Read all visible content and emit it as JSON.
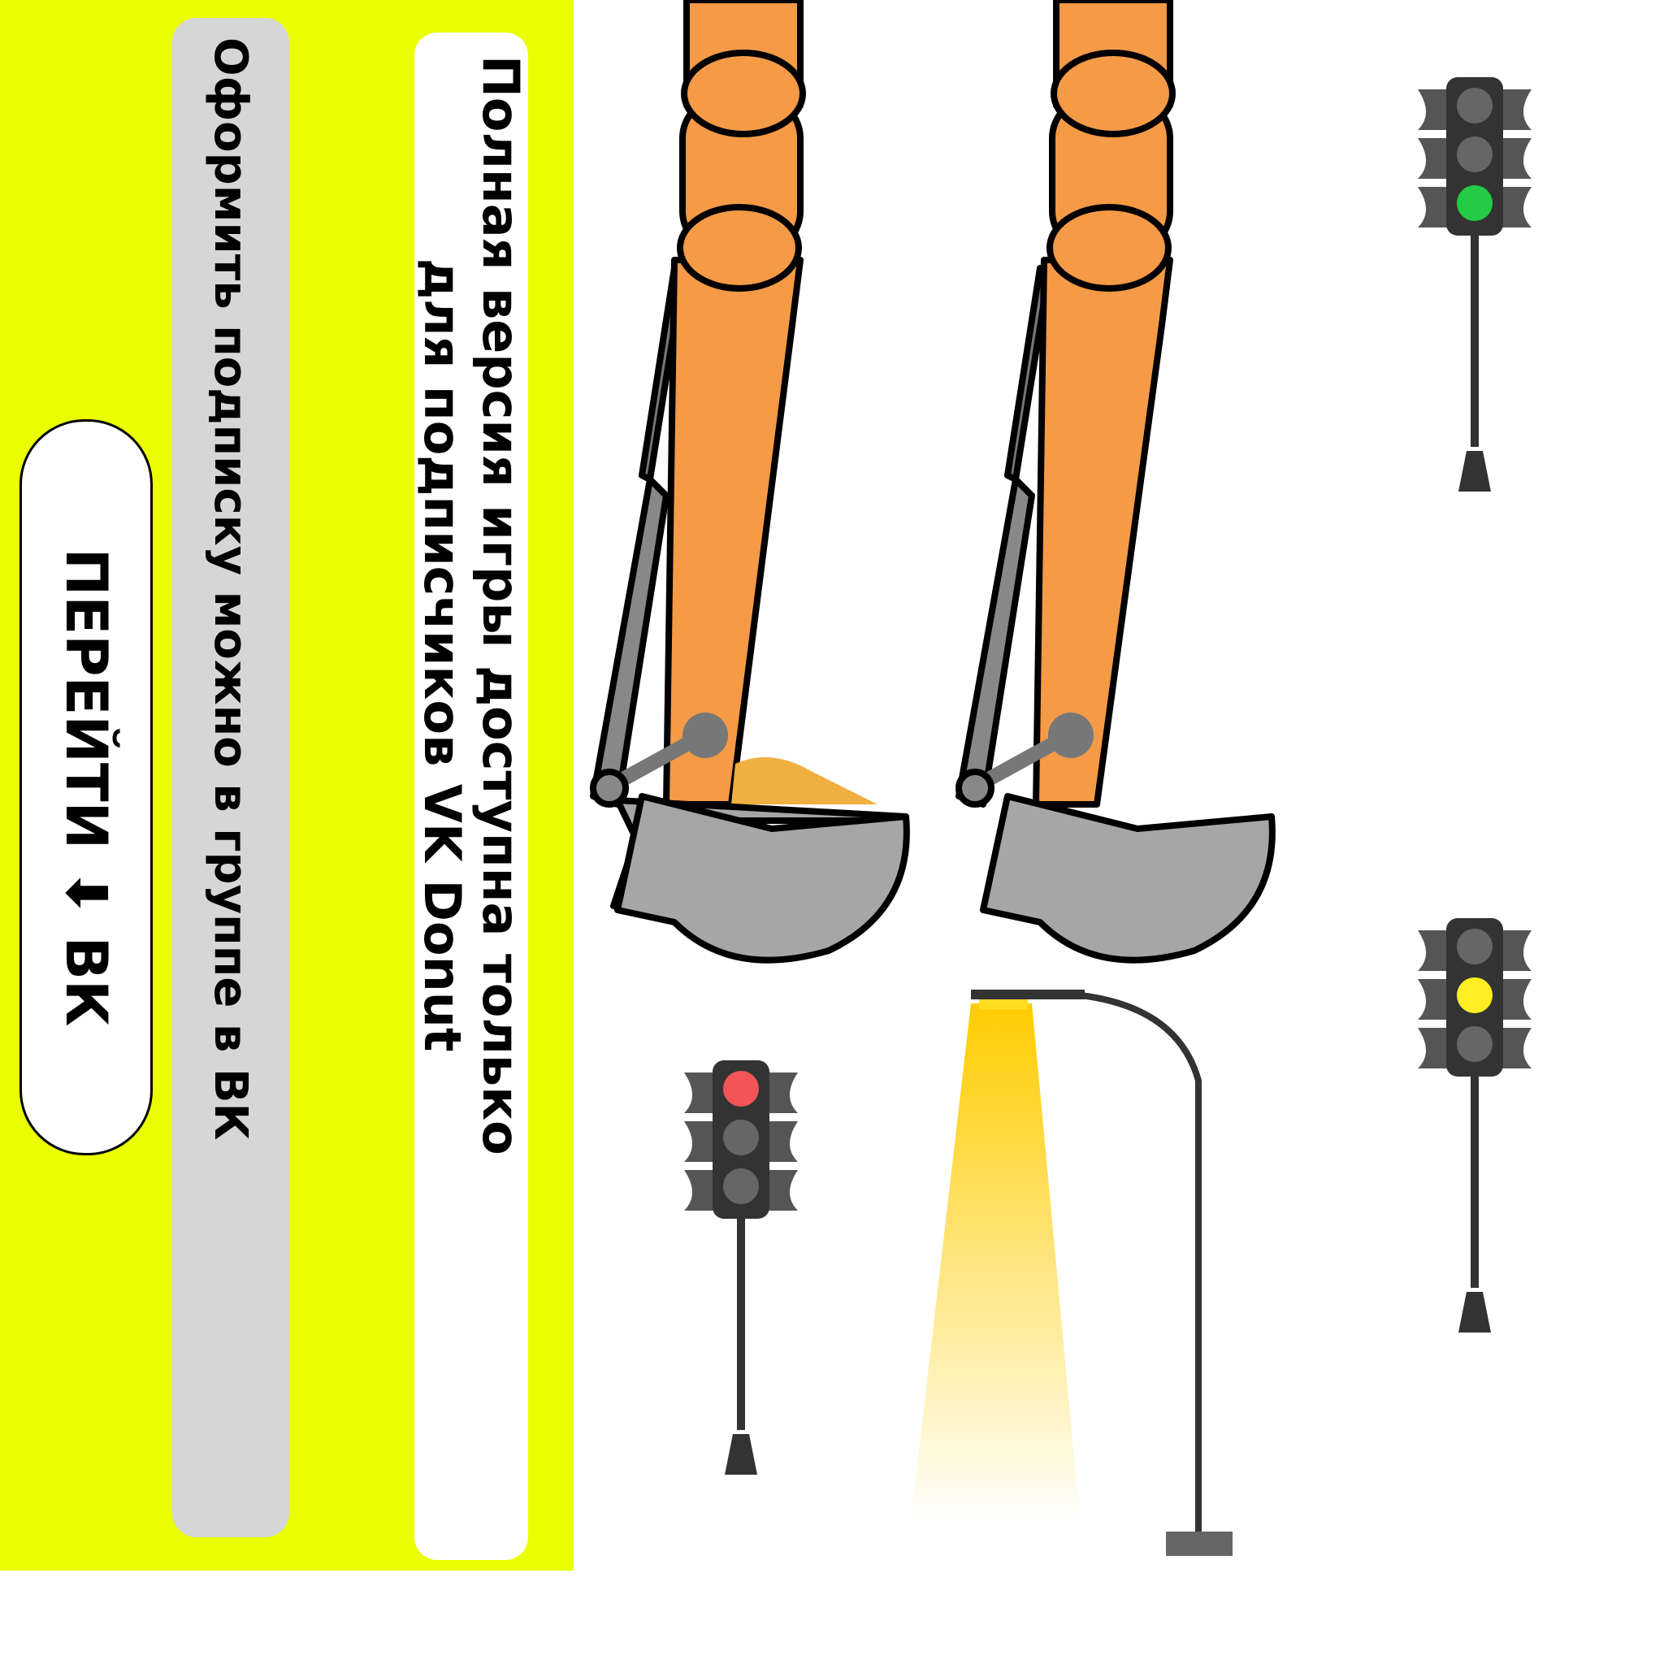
{
  "promo": {
    "title_line1": "Полная версия игры доступна только",
    "title_line2": "для подписчиков VK Donut",
    "subtitle": "Оформить подписку можно в группе в ВК",
    "button_label": "ПЕРЕЙТИ ⬇ ВК"
  },
  "colors": {
    "panel": "#eaff00",
    "arm": "#f59a46",
    "metal": "#a6a6a6",
    "light_red": "#f25555",
    "light_yellow": "#ffee22",
    "light_green": "#22cc44"
  },
  "scene": {
    "excavator_arms": 2,
    "traffic_lights": [
      {
        "active": "green"
      },
      {
        "active": "yellow"
      },
      {
        "active": "red"
      }
    ],
    "street_lamp": {
      "on": true
    }
  }
}
